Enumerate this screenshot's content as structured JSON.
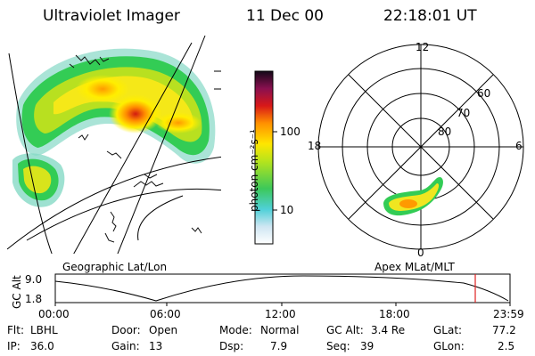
{
  "header": {
    "instrument": "Ultraviolet Imager",
    "date": "11 Dec 00",
    "time": "22:18:01 UT"
  },
  "colorbar": {
    "unit_label": "photon cm⁻²s⁻¹",
    "tick_labels": [
      "100",
      "10"
    ]
  },
  "polar_plot": {
    "mlt_labels": {
      "top": "12",
      "left": "18",
      "right": "6",
      "bottom": "0"
    },
    "lat_labels": [
      "60",
      "70",
      "80"
    ]
  },
  "timeline": {
    "left_caption": "Geographic Lat/Lon",
    "right_caption": "Apex MLat/MLT",
    "axis_label": "GC Alt",
    "y_labels": [
      "9.0",
      "1.8"
    ],
    "x_ticks": [
      "00:00",
      "06:00",
      "12:00",
      "18:00",
      "23:59"
    ],
    "current_time_marker_color": "#e02020"
  },
  "status": {
    "filter_label": "Flt:",
    "filter_value": "LBHL",
    "ip_label": "IP:",
    "ip_value": "36.0",
    "door_label": "Door:",
    "door_value": "Open",
    "gain_label": "Gain:",
    "gain_value": "13",
    "mode_label": "Mode:",
    "mode_value": "Normal",
    "dsp_label": "Dsp:",
    "dsp_value": "7.9",
    "gcalt_label": "GC Alt:",
    "gcalt_value": "3.4 Re",
    "seq_label": "Seq:",
    "seq_value": "39",
    "glat_label": "GLat:",
    "glat_value": "77.2",
    "glon_label": "GLon:",
    "glon_value": "2.5"
  }
}
